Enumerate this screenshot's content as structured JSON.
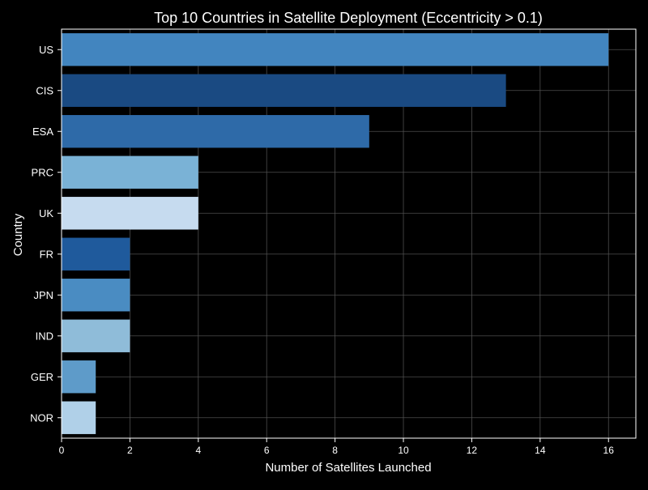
{
  "chart_data": {
    "type": "bar",
    "orientation": "horizontal",
    "title": "Top 10 Countries in Satellite Deployment (Eccentricity > 0.1)",
    "xlabel": "Number of Satellites Launched",
    "ylabel": "Country",
    "categories": [
      "US",
      "CIS",
      "ESA",
      "PRC",
      "UK",
      "FR",
      "JPN",
      "IND",
      "GER",
      "NOR"
    ],
    "values": [
      16,
      13,
      9,
      4,
      4,
      2,
      2,
      2,
      1,
      1
    ],
    "bar_colors": [
      "#4285bf",
      "#1a4a82",
      "#2e6aa8",
      "#7ab2d6",
      "#c6dbef",
      "#1f5a9c",
      "#4a8cc2",
      "#8fbcd9",
      "#5e9bc9",
      "#b0d0e8"
    ],
    "xlim": [
      0,
      16.8
    ],
    "xticks": [
      0,
      2,
      4,
      6,
      8,
      10,
      12,
      14,
      16
    ],
    "grid": true,
    "background": "#000000",
    "text_color": "#ffffff",
    "grid_color": "#555555"
  }
}
